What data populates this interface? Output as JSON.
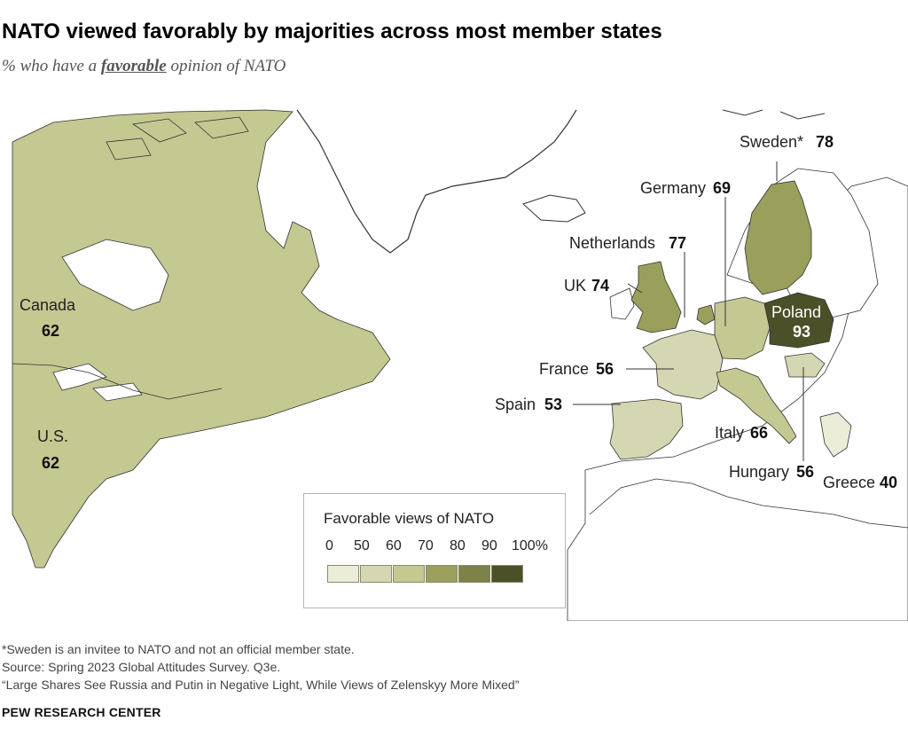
{
  "title": "NATO viewed favorably by majorities across most member states",
  "subtitle": {
    "prefix": "% who have a",
    "emphasis": "favorable",
    "suffix": "opinion of NATO"
  },
  "map": {
    "countries": [
      {
        "name": "Canada",
        "value": "62"
      },
      {
        "name": "U.S.",
        "value": "62"
      },
      {
        "name": "Sweden*",
        "value": "78"
      },
      {
        "name": "Germany",
        "value": "69"
      },
      {
        "name": "Netherlands",
        "value": "77"
      },
      {
        "name": "UK",
        "value": "74"
      },
      {
        "name": "Poland",
        "value": "93"
      },
      {
        "name": "France",
        "value": "56"
      },
      {
        "name": "Spain",
        "value": "53"
      },
      {
        "name": "Italy",
        "value": "66"
      },
      {
        "name": "Hungary",
        "value": "56"
      },
      {
        "name": "Greece",
        "value": "40"
      }
    ],
    "colors": {
      "c0_50": "#ecedd9",
      "c50_60": "#d4d7b2",
      "c60_70": "#c4c891",
      "c70_80": "#9aa05c",
      "c80_90": "#7c8248",
      "c90_100": "#4c5028",
      "other_land": "#ffffff",
      "border": "#333333"
    }
  },
  "legend": {
    "title": "Favorable views of NATO",
    "ticks": [
      "0",
      "50",
      "60",
      "70",
      "80",
      "90",
      "100%"
    ]
  },
  "notes": {
    "note": "*Sweden is an invitee to NATO and not an official member state.",
    "source": "Source: Spring 2023 Global Attitudes Survey. Q3e.",
    "report": "“Large Shares See Russia and Putin in Negative Light, While Views of Zelenskyy More Mixed”"
  },
  "brand": "PEW RESEARCH CENTER"
}
